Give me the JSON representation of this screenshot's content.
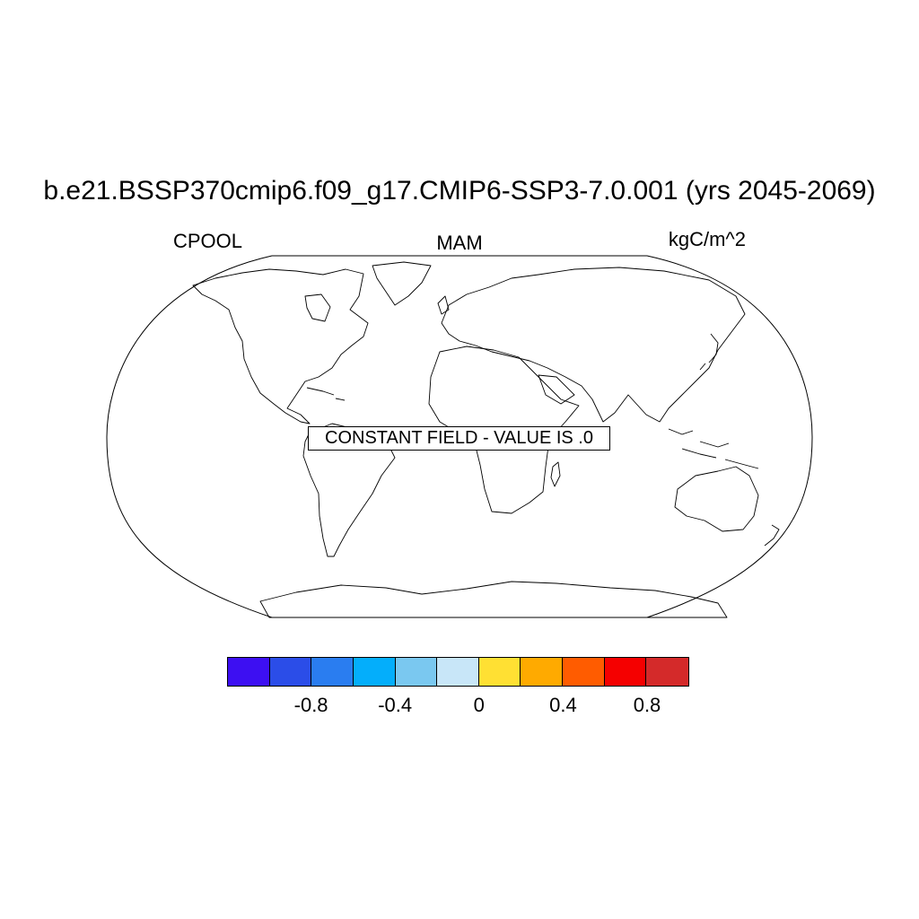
{
  "title": "b.e21.BSSP370cmip6.f09_g17.CMIP6-SSP3-7.0.001 (yrs 2045-2069)",
  "left_label": "CPOOL",
  "center_label": "MAM",
  "right_label": "kgC/m^2",
  "message": "CONSTANT FIELD - VALUE IS .0",
  "projection": "Robinson",
  "colorbar": {
    "colors": [
      "#3d0ff2",
      "#2b4de8",
      "#2a7df0",
      "#04aefb",
      "#7ac8f0",
      "#c8e6f8",
      "#ffe033",
      "#ffaa00",
      "#ff5c00",
      "#f50000",
      "#d42a2a"
    ],
    "tick_labels": [
      "-0.8",
      "-0.4",
      "0",
      "0.4",
      "0.8"
    ],
    "tick_values": [
      -0.8,
      -0.4,
      0,
      0.4,
      0.8
    ],
    "range": [
      -1.1,
      1.1
    ]
  }
}
